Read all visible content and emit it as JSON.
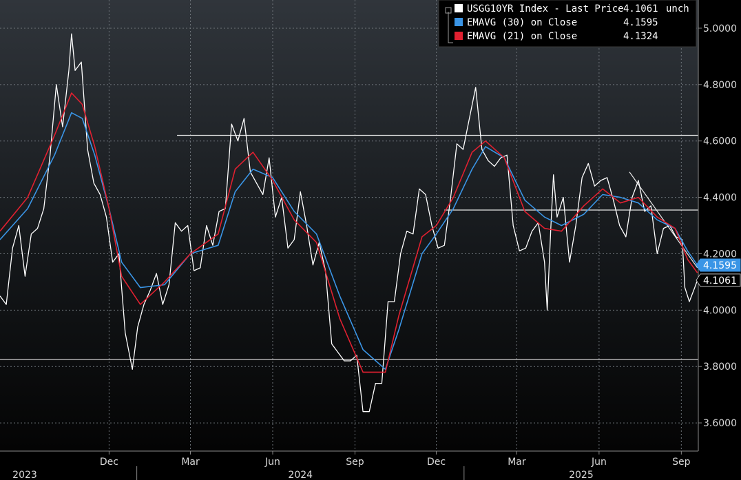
{
  "chart_data": {
    "type": "line",
    "x_range": [
      "2023-08-01",
      "2025-09-20"
    ],
    "ylim": [
      3.5,
      5.1
    ],
    "y_ticks": [
      "3.6000",
      "3.8000",
      "4.0000",
      "4.2000",
      "4.4000",
      "4.6000",
      "4.8000",
      "5.0000"
    ],
    "x_ticks": [
      {
        "label": "Dec",
        "date": "2023-12-01"
      },
      {
        "label": "Mar",
        "date": "2024-03-01"
      },
      {
        "label": "Jun",
        "date": "2024-06-01"
      },
      {
        "label": "Sep",
        "date": "2024-09-01"
      },
      {
        "label": "Dec",
        "date": "2024-12-01"
      },
      {
        "label": "Mar",
        "date": "2025-03-01"
      },
      {
        "label": "Jun",
        "date": "2025-06-01"
      },
      {
        "label": "Sep",
        "date": "2025-09-01"
      }
    ],
    "years": [
      {
        "label": "2023",
        "date": "2023-08-01"
      },
      {
        "label": "2024",
        "date": "2024-01-01"
      },
      {
        "label": "2025",
        "date": "2025-01-01"
      }
    ],
    "legend": {
      "placement": "top-right",
      "rows": [
        {
          "name": "USGG10YR Index - Last Price",
          "value": "4.1061",
          "suffix": "unch",
          "color": "#ffffff"
        },
        {
          "name": "EMAVG (30)  on Close",
          "value": "4.1595",
          "suffix": "",
          "color": "#3a95e6"
        },
        {
          "name": "EMAVG (21)  on Close",
          "value": "4.1324",
          "suffix": "",
          "color": "#e02030"
        }
      ]
    },
    "last_value_labels": [
      {
        "text": "4.1595",
        "value": 4.1595,
        "bg": "#3a95e6",
        "fg": "#ffffff"
      },
      {
        "text": "4.1061",
        "value": 4.1061,
        "bg": "#000000",
        "fg": "#ffffff"
      }
    ],
    "series": [
      {
        "name": "USGG10YR Index - Last Price",
        "color": "#ffffff",
        "points": [
          [
            "2023-08-01",
            4.05
          ],
          [
            "2023-08-08",
            4.02
          ],
          [
            "2023-08-15",
            4.22
          ],
          [
            "2023-08-22",
            4.3
          ],
          [
            "2023-08-29",
            4.12
          ],
          [
            "2023-09-05",
            4.27
          ],
          [
            "2023-09-12",
            4.29
          ],
          [
            "2023-09-19",
            4.36
          ],
          [
            "2023-09-26",
            4.55
          ],
          [
            "2023-10-03",
            4.8
          ],
          [
            "2023-10-10",
            4.65
          ],
          [
            "2023-10-17",
            4.85
          ],
          [
            "2023-10-20",
            4.98
          ],
          [
            "2023-10-24",
            4.85
          ],
          [
            "2023-10-31",
            4.88
          ],
          [
            "2023-11-07",
            4.57
          ],
          [
            "2023-11-14",
            4.45
          ],
          [
            "2023-11-21",
            4.41
          ],
          [
            "2023-11-28",
            4.33
          ],
          [
            "2023-12-05",
            4.17
          ],
          [
            "2023-12-12",
            4.2
          ],
          [
            "2023-12-19",
            3.92
          ],
          [
            "2023-12-27",
            3.79
          ],
          [
            "2024-01-02",
            3.94
          ],
          [
            "2024-01-09",
            4.02
          ],
          [
            "2024-01-16",
            4.07
          ],
          [
            "2024-01-23",
            4.13
          ],
          [
            "2024-01-30",
            4.02
          ],
          [
            "2024-02-06",
            4.09
          ],
          [
            "2024-02-13",
            4.31
          ],
          [
            "2024-02-20",
            4.28
          ],
          [
            "2024-02-27",
            4.3
          ],
          [
            "2024-03-05",
            4.14
          ],
          [
            "2024-03-12",
            4.15
          ],
          [
            "2024-03-19",
            4.3
          ],
          [
            "2024-03-26",
            4.23
          ],
          [
            "2024-04-02",
            4.35
          ],
          [
            "2024-04-09",
            4.36
          ],
          [
            "2024-04-16",
            4.66
          ],
          [
            "2024-04-23",
            4.6
          ],
          [
            "2024-04-30",
            4.68
          ],
          [
            "2024-05-07",
            4.49
          ],
          [
            "2024-05-14",
            4.45
          ],
          [
            "2024-05-21",
            4.41
          ],
          [
            "2024-05-28",
            4.54
          ],
          [
            "2024-06-04",
            4.33
          ],
          [
            "2024-06-11",
            4.4
          ],
          [
            "2024-06-18",
            4.22
          ],
          [
            "2024-06-25",
            4.25
          ],
          [
            "2024-07-02",
            4.42
          ],
          [
            "2024-07-09",
            4.3
          ],
          [
            "2024-07-16",
            4.16
          ],
          [
            "2024-07-23",
            4.24
          ],
          [
            "2024-07-30",
            4.14
          ],
          [
            "2024-08-06",
            3.88
          ],
          [
            "2024-08-13",
            3.85
          ],
          [
            "2024-08-20",
            3.82
          ],
          [
            "2024-08-27",
            3.82
          ],
          [
            "2024-09-03",
            3.84
          ],
          [
            "2024-09-10",
            3.64
          ],
          [
            "2024-09-17",
            3.64
          ],
          [
            "2024-09-24",
            3.74
          ],
          [
            "2024-10-01",
            3.74
          ],
          [
            "2024-10-08",
            4.03
          ],
          [
            "2024-10-15",
            4.03
          ],
          [
            "2024-10-22",
            4.2
          ],
          [
            "2024-10-29",
            4.28
          ],
          [
            "2024-11-05",
            4.27
          ],
          [
            "2024-11-12",
            4.43
          ],
          [
            "2024-11-19",
            4.41
          ],
          [
            "2024-11-26",
            4.3
          ],
          [
            "2024-12-03",
            4.22
          ],
          [
            "2024-12-10",
            4.23
          ],
          [
            "2024-12-17",
            4.4
          ],
          [
            "2024-12-24",
            4.59
          ],
          [
            "2024-12-31",
            4.57
          ],
          [
            "2025-01-07",
            4.68
          ],
          [
            "2025-01-14",
            4.79
          ],
          [
            "2025-01-21",
            4.57
          ],
          [
            "2025-01-28",
            4.53
          ],
          [
            "2025-02-04",
            4.51
          ],
          [
            "2025-02-11",
            4.54
          ],
          [
            "2025-02-18",
            4.55
          ],
          [
            "2025-02-25",
            4.3
          ],
          [
            "2025-03-04",
            4.21
          ],
          [
            "2025-03-11",
            4.22
          ],
          [
            "2025-03-18",
            4.28
          ],
          [
            "2025-03-25",
            4.31
          ],
          [
            "2025-04-01",
            4.17
          ],
          [
            "2025-04-04",
            4.0
          ],
          [
            "2025-04-08",
            4.29
          ],
          [
            "2025-04-11",
            4.48
          ],
          [
            "2025-04-15",
            4.33
          ],
          [
            "2025-04-22",
            4.4
          ],
          [
            "2025-04-29",
            4.17
          ],
          [
            "2025-05-06",
            4.3
          ],
          [
            "2025-05-13",
            4.47
          ],
          [
            "2025-05-20",
            4.52
          ],
          [
            "2025-05-27",
            4.44
          ],
          [
            "2025-06-03",
            4.46
          ],
          [
            "2025-06-10",
            4.47
          ],
          [
            "2025-06-17",
            4.39
          ],
          [
            "2025-06-24",
            4.3
          ],
          [
            "2025-07-01",
            4.26
          ],
          [
            "2025-07-08",
            4.4
          ],
          [
            "2025-07-15",
            4.46
          ],
          [
            "2025-07-22",
            4.35
          ],
          [
            "2025-07-29",
            4.37
          ],
          [
            "2025-08-05",
            4.2
          ],
          [
            "2025-08-12",
            4.29
          ],
          [
            "2025-08-19",
            4.3
          ],
          [
            "2025-08-26",
            4.26
          ],
          [
            "2025-09-02",
            4.25
          ],
          [
            "2025-09-05",
            4.08
          ],
          [
            "2025-09-10",
            4.03
          ],
          [
            "2025-09-16",
            4.08
          ],
          [
            "2025-09-19",
            4.1061
          ]
        ]
      },
      {
        "name": "EMAVG (30)  on Close",
        "color": "#3a95e6",
        "points": [
          [
            "2023-08-01",
            4.25
          ],
          [
            "2023-09-01",
            4.36
          ],
          [
            "2023-10-01",
            4.55
          ],
          [
            "2023-10-20",
            4.7
          ],
          [
            "2023-11-01",
            4.68
          ],
          [
            "2023-11-15",
            4.55
          ],
          [
            "2023-12-01",
            4.36
          ],
          [
            "2023-12-15",
            4.17
          ],
          [
            "2024-01-05",
            4.08
          ],
          [
            "2024-02-01",
            4.09
          ],
          [
            "2024-03-01",
            4.2
          ],
          [
            "2024-04-01",
            4.23
          ],
          [
            "2024-04-20",
            4.42
          ],
          [
            "2024-05-10",
            4.5
          ],
          [
            "2024-06-01",
            4.47
          ],
          [
            "2024-06-25",
            4.35
          ],
          [
            "2024-07-20",
            4.27
          ],
          [
            "2024-08-15",
            4.05
          ],
          [
            "2024-09-10",
            3.86
          ],
          [
            "2024-10-05",
            3.79
          ],
          [
            "2024-10-20",
            3.93
          ],
          [
            "2024-11-15",
            4.2
          ],
          [
            "2024-12-01",
            4.27
          ],
          [
            "2024-12-20",
            4.36
          ],
          [
            "2025-01-10",
            4.5
          ],
          [
            "2025-01-25",
            4.58
          ],
          [
            "2025-02-15",
            4.54
          ],
          [
            "2025-03-10",
            4.39
          ],
          [
            "2025-04-01",
            4.33
          ],
          [
            "2025-04-20",
            4.3
          ],
          [
            "2025-05-15",
            4.34
          ],
          [
            "2025-06-05",
            4.41
          ],
          [
            "2025-06-25",
            4.4
          ],
          [
            "2025-07-15",
            4.38
          ],
          [
            "2025-08-05",
            4.32
          ],
          [
            "2025-08-25",
            4.29
          ],
          [
            "2025-09-08",
            4.21
          ],
          [
            "2025-09-19",
            4.1595
          ]
        ]
      },
      {
        "name": "EMAVG (21)  on Close",
        "color": "#e02030",
        "points": [
          [
            "2023-08-01",
            4.28
          ],
          [
            "2023-09-01",
            4.4
          ],
          [
            "2023-10-01",
            4.62
          ],
          [
            "2023-10-20",
            4.77
          ],
          [
            "2023-11-01",
            4.73
          ],
          [
            "2023-11-15",
            4.58
          ],
          [
            "2023-12-01",
            4.36
          ],
          [
            "2023-12-15",
            4.12
          ],
          [
            "2024-01-05",
            4.02
          ],
          [
            "2024-02-01",
            4.1
          ],
          [
            "2024-03-01",
            4.2
          ],
          [
            "2024-04-01",
            4.27
          ],
          [
            "2024-04-20",
            4.5
          ],
          [
            "2024-05-10",
            4.56
          ],
          [
            "2024-06-01",
            4.46
          ],
          [
            "2024-06-25",
            4.32
          ],
          [
            "2024-07-20",
            4.24
          ],
          [
            "2024-08-15",
            3.97
          ],
          [
            "2024-09-10",
            3.78
          ],
          [
            "2024-10-05",
            3.78
          ],
          [
            "2024-10-20",
            3.98
          ],
          [
            "2024-11-15",
            4.26
          ],
          [
            "2024-12-01",
            4.3
          ],
          [
            "2024-12-20",
            4.4
          ],
          [
            "2025-01-10",
            4.56
          ],
          [
            "2025-01-25",
            4.6
          ],
          [
            "2025-02-15",
            4.54
          ],
          [
            "2025-03-10",
            4.35
          ],
          [
            "2025-04-01",
            4.29
          ],
          [
            "2025-04-20",
            4.28
          ],
          [
            "2025-05-15",
            4.37
          ],
          [
            "2025-06-05",
            4.43
          ],
          [
            "2025-06-25",
            4.38
          ],
          [
            "2025-07-15",
            4.4
          ],
          [
            "2025-08-05",
            4.33
          ],
          [
            "2025-08-25",
            4.29
          ],
          [
            "2025-09-08",
            4.18
          ],
          [
            "2025-09-19",
            4.1324
          ]
        ]
      }
    ],
    "reference_lines": [
      {
        "name": "resistance-line-4-62",
        "value": 4.62,
        "from": "2024-02-15",
        "to": "2025-09-20"
      },
      {
        "name": "resistance-line-4-355",
        "value": 4.355,
        "from": "2024-12-10",
        "to": "2025-09-20"
      },
      {
        "name": "support-line-3-825",
        "value": 3.825,
        "from": "2023-08-01",
        "to": "2025-09-20"
      }
    ],
    "trend_line": {
      "from": [
        "2025-07-05",
        4.49
      ],
      "to": [
        "2025-09-19",
        4.15
      ]
    }
  }
}
